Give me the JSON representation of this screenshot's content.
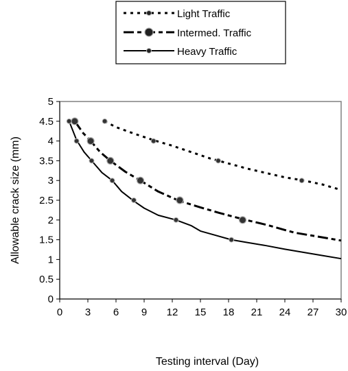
{
  "chart_data": {
    "type": "line",
    "xlabel": "Testing interval (Day)",
    "ylabel": "Allowable crack size (mm)",
    "xlim": [
      0,
      30
    ],
    "ylim": [
      0,
      5
    ],
    "x_ticks": [
      "0",
      "3",
      "6",
      "9",
      "12",
      "15",
      "18",
      "21",
      "24",
      "27",
      "30"
    ],
    "y_ticks": [
      "0",
      "0.5",
      "1",
      "1.5",
      "2",
      "2.5",
      "3",
      "3.5",
      "4",
      "4.5",
      "5"
    ],
    "grid": false,
    "legend_position": "top-center",
    "series": [
      {
        "name": "Light Traffic",
        "style": "dotted",
        "marker": "small-dot",
        "color": "#000000",
        "curve": [
          [
            4.8,
            4.5
          ],
          [
            6,
            4.35
          ],
          [
            8,
            4.18
          ],
          [
            10,
            4.02
          ],
          [
            12,
            3.88
          ],
          [
            14,
            3.72
          ],
          [
            16,
            3.56
          ],
          [
            18,
            3.43
          ],
          [
            20,
            3.3
          ],
          [
            22,
            3.19
          ],
          [
            24,
            3.08
          ],
          [
            26,
            3.0
          ],
          [
            28,
            2.9
          ],
          [
            30,
            2.76
          ]
        ],
        "markers": [
          [
            4.8,
            4.5
          ],
          [
            10,
            4.0
          ],
          [
            16.9,
            3.5
          ],
          [
            25.8,
            3.0
          ]
        ]
      },
      {
        "name": "Intermed. Traffic",
        "style": "dash-dot",
        "marker": "large-dot",
        "color": "#000000",
        "curve": [
          [
            1.6,
            4.5
          ],
          [
            2.5,
            4.2
          ],
          [
            3.3,
            4.0
          ],
          [
            4.3,
            3.72
          ],
          [
            5.4,
            3.5
          ],
          [
            7,
            3.22
          ],
          [
            8.6,
            3.0
          ],
          [
            10.5,
            2.72
          ],
          [
            12.8,
            2.48
          ],
          [
            15,
            2.32
          ],
          [
            17,
            2.18
          ],
          [
            19.5,
            2.02
          ],
          [
            22,
            1.88
          ],
          [
            25,
            1.68
          ],
          [
            28,
            1.56
          ],
          [
            30,
            1.48
          ]
        ],
        "markers": [
          [
            1.6,
            4.5
          ],
          [
            3.3,
            4.0
          ],
          [
            5.4,
            3.5
          ],
          [
            8.6,
            3.0
          ],
          [
            12.8,
            2.5
          ],
          [
            19.5,
            2.0
          ]
        ]
      },
      {
        "name": "Heavy Traffic",
        "style": "solid",
        "marker": "small-dot",
        "color": "#000000",
        "curve": [
          [
            1,
            4.5
          ],
          [
            1.8,
            4.02
          ],
          [
            2.6,
            3.72
          ],
          [
            3.4,
            3.5
          ],
          [
            4.5,
            3.2
          ],
          [
            5.6,
            3.0
          ],
          [
            6.6,
            2.72
          ],
          [
            7.9,
            2.48
          ],
          [
            9,
            2.3
          ],
          [
            10.5,
            2.12
          ],
          [
            12.4,
            2.0
          ],
          [
            14,
            1.86
          ],
          [
            15,
            1.72
          ],
          [
            16.5,
            1.62
          ],
          [
            18.3,
            1.5
          ],
          [
            20,
            1.43
          ],
          [
            22,
            1.35
          ],
          [
            24,
            1.26
          ],
          [
            26,
            1.18
          ],
          [
            28,
            1.1
          ],
          [
            30,
            1.02
          ]
        ],
        "markers": [
          [
            1,
            4.5
          ],
          [
            1.8,
            4.0
          ],
          [
            3.4,
            3.5
          ],
          [
            5.6,
            3.0
          ],
          [
            7.9,
            2.5
          ],
          [
            12.4,
            2.0
          ],
          [
            18.3,
            1.5
          ]
        ]
      }
    ]
  }
}
